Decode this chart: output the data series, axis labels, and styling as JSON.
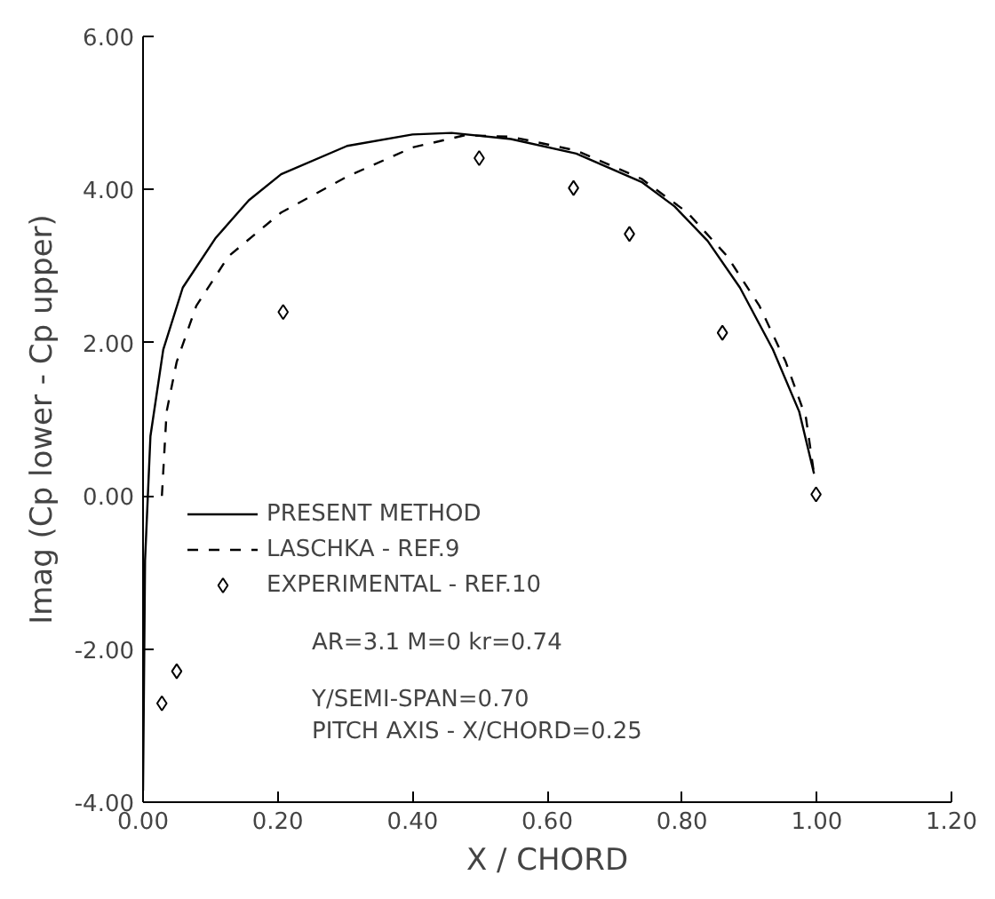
{
  "chart_data": {
    "type": "line",
    "xlabel": "X / CHORD",
    "ylabel": "Imag (Cp lower - Cp upper)",
    "xlim": [
      0,
      1.2
    ],
    "ylim": [
      -4,
      6
    ],
    "xticks": [
      {
        "value": 0,
        "label": "0.00"
      },
      {
        "value": 0.2,
        "label": "0.20"
      },
      {
        "value": 0.4,
        "label": "0.40"
      },
      {
        "value": 0.6,
        "label": "0.60"
      },
      {
        "value": 0.8,
        "label": "0.80"
      },
      {
        "value": 1.0,
        "label": "1.00"
      },
      {
        "value": 1.2,
        "label": "1.20"
      }
    ],
    "yticks": [
      {
        "value": -4,
        "label": "-4.00"
      },
      {
        "value": -2,
        "label": "-2.00"
      },
      {
        "value": 0,
        "label": "0.00"
      },
      {
        "value": 2,
        "label": "2.00"
      },
      {
        "value": 4,
        "label": "4.00"
      },
      {
        "value": 6,
        "label": "6.00"
      }
    ],
    "grid": false,
    "legend": "bottom left",
    "series": [
      {
        "name": "PRESENT METHOD",
        "line_style": "solid",
        "color": "#000000",
        "x": [
          0,
          0.003,
          0.011,
          0.03,
          0.059,
          0.108,
          0.157,
          0.205,
          0.303,
          0.4,
          0.458,
          0.546,
          0.643,
          0.74,
          0.789,
          0.838,
          0.886,
          0.935,
          0.974,
          0.996
        ],
        "values": [
          -3.85,
          -0.84,
          0.78,
          1.91,
          2.72,
          3.37,
          3.86,
          4.2,
          4.57,
          4.72,
          4.74,
          4.66,
          4.47,
          4.1,
          3.78,
          3.33,
          2.72,
          1.91,
          1.1,
          0.29
        ]
      },
      {
        "name": "LASCHKA - REF.9",
        "line_style": "dashed",
        "color": "#000000",
        "x": [
          0.028,
          0.035,
          0.05,
          0.079,
          0.127,
          0.205,
          0.303,
          0.4,
          0.478,
          0.546,
          0.643,
          0.74,
          0.808,
          0.867,
          0.915,
          0.954,
          0.984,
          0.996
        ],
        "values": [
          0.0,
          1.1,
          1.75,
          2.48,
          3.13,
          3.7,
          4.17,
          4.55,
          4.71,
          4.69,
          4.51,
          4.14,
          3.7,
          3.13,
          2.48,
          1.75,
          1.02,
          0.29
        ]
      },
      {
        "name": "EXPERIMENTAL - REF.10",
        "type": "scatter",
        "marker": "diamond",
        "color": "#000000",
        "x": [
          0.028,
          0.05,
          0.208,
          0.499,
          0.639,
          0.722,
          0.86,
          0.999
        ],
        "values": [
          -2.71,
          -2.29,
          2.4,
          4.41,
          4.02,
          3.42,
          2.13,
          0.02
        ]
      }
    ],
    "annotations": [
      "AR=3.1 M=0 kr=0.74",
      "Y/SEMI-SPAN=0.70",
      "PITCH AXIS - X/CHORD=0.25"
    ]
  }
}
